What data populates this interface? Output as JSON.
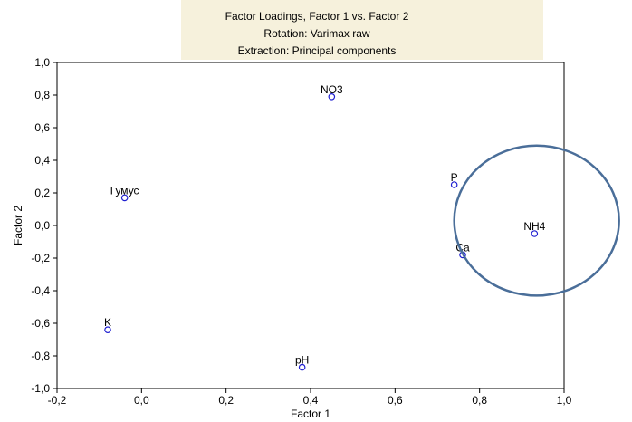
{
  "chart_data": {
    "type": "scatter",
    "title": "Factor Loadings, Factor 1 vs. Factor 2",
    "subtitle": [
      "Rotation: Varimax raw",
      "Extraction: Principal components"
    ],
    "xlabel": "Factor 1",
    "ylabel": "Factor 2",
    "xlim": [
      -0.2,
      1.0
    ],
    "ylim": [
      -1.0,
      1.0
    ],
    "xticks": [
      {
        "value": -0.2,
        "label": "-0,2"
      },
      {
        "value": 0.0,
        "label": "0,0"
      },
      {
        "value": 0.2,
        "label": "0,2"
      },
      {
        "value": 0.4,
        "label": "0,4"
      },
      {
        "value": 0.6,
        "label": "0,6"
      },
      {
        "value": 0.8,
        "label": "0,8"
      },
      {
        "value": 1.0,
        "label": "1,0"
      }
    ],
    "yticks": [
      {
        "value": 1.0,
        "label": "1,0"
      },
      {
        "value": 0.8,
        "label": "0,8"
      },
      {
        "value": 0.6,
        "label": "0,6"
      },
      {
        "value": 0.4,
        "label": "0,4"
      },
      {
        "value": 0.2,
        "label": "0,2"
      },
      {
        "value": 0.0,
        "label": "0,0"
      },
      {
        "value": -0.2,
        "label": "-0,2"
      },
      {
        "value": -0.4,
        "label": "-0,4"
      },
      {
        "value": -0.6,
        "label": "-0,6"
      },
      {
        "value": -0.8,
        "label": "-0,8"
      },
      {
        "value": -1.0,
        "label": "-1,0"
      }
    ],
    "grid": false,
    "points": [
      {
        "label": "NO3",
        "x": 0.45,
        "y": 0.79
      },
      {
        "label": "Гумус",
        "x": -0.04,
        "y": 0.17
      },
      {
        "label": "P",
        "x": 0.74,
        "y": 0.25
      },
      {
        "label": "NH4",
        "x": 0.93,
        "y": -0.05
      },
      {
        "label": "Ca",
        "x": 0.76,
        "y": -0.18
      },
      {
        "label": "K",
        "x": -0.08,
        "y": -0.64
      },
      {
        "label": "pH",
        "x": 0.38,
        "y": -0.87
      }
    ],
    "annotation": {
      "shape": "ellipse",
      "center_x": 0.935,
      "center_y": 0.03,
      "semi_x": 0.195,
      "semi_y": 0.46
    },
    "colors": {
      "header_band": "#f6f1dc",
      "point": "#1f1fd0",
      "ellipse": "#4a6e99",
      "axis": "#000000"
    }
  }
}
